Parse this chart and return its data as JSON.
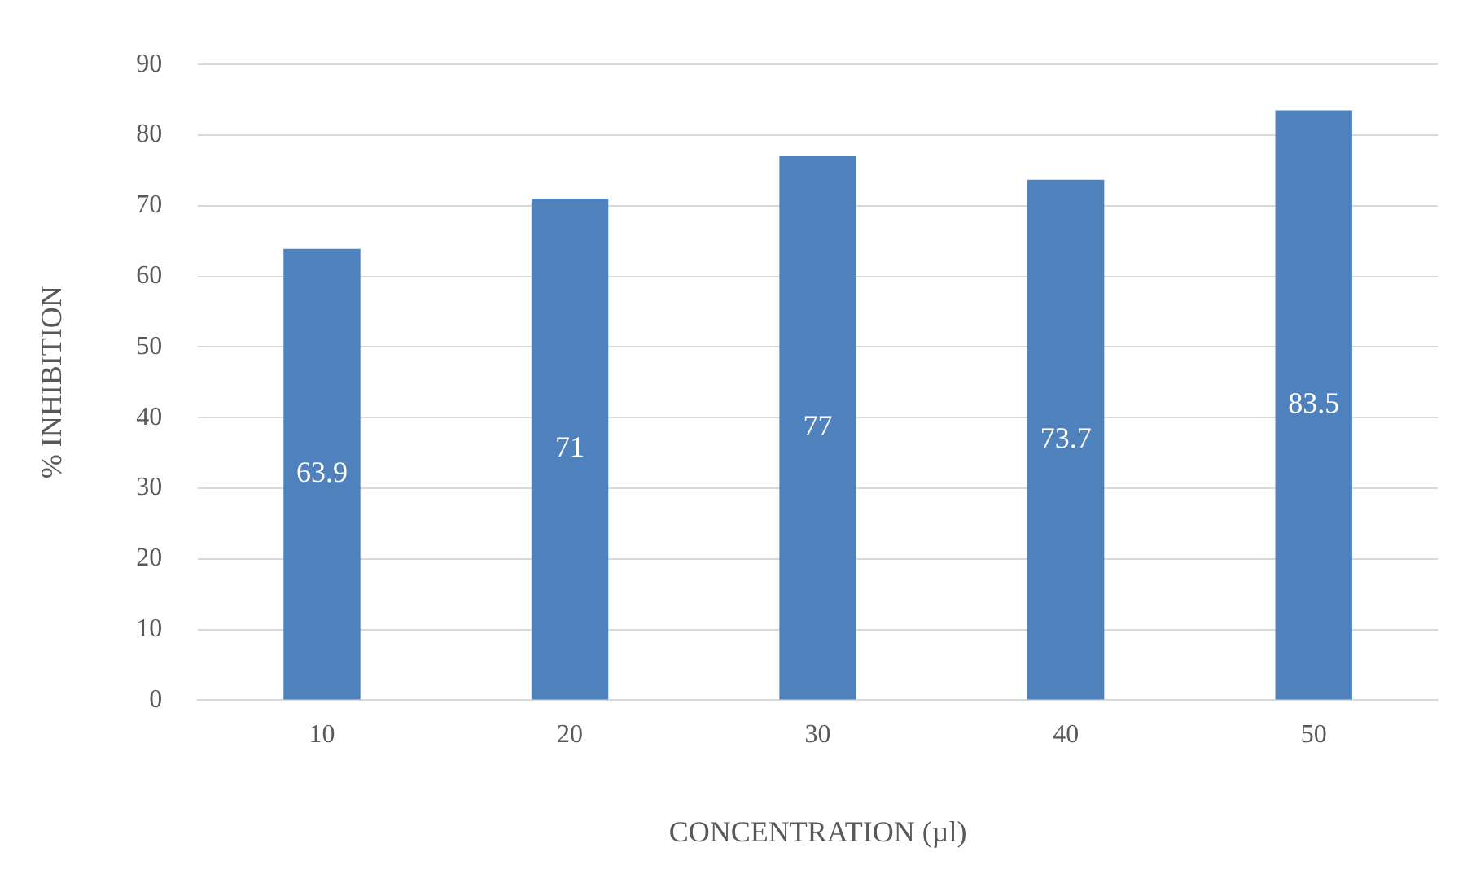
{
  "chart_data": {
    "type": "bar",
    "xlabel": "CONCENTRATION (µl)",
    "ylabel": "% INHIBITION",
    "categories": [
      "10",
      "20",
      "30",
      "40",
      "50"
    ],
    "values": [
      63.9,
      71,
      77,
      73.7,
      83.5
    ],
    "color": "#4f81bd",
    "ylim": [
      0,
      90
    ],
    "yticks": [
      0,
      10,
      20,
      30,
      40,
      50,
      60,
      70,
      80,
      90
    ],
    "grid": "y",
    "legend": false,
    "data_labels": true
  }
}
